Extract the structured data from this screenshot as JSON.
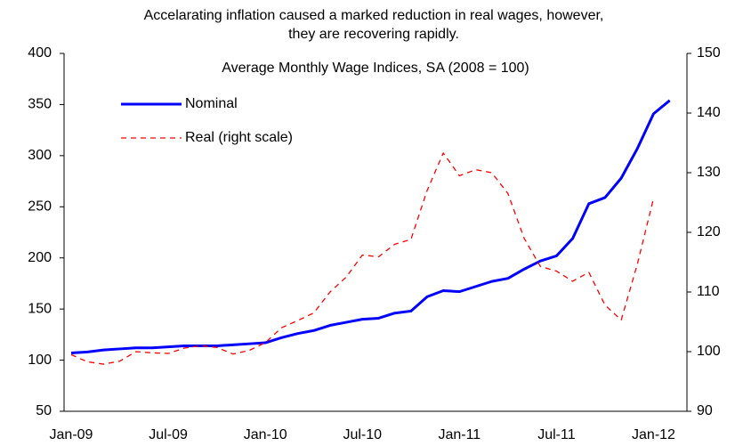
{
  "chart_data": {
    "type": "line",
    "title": [
      "Accelarating inflation caused a marked reduction in real wages, however,",
      "they are recovering rapidly."
    ],
    "subtitle": "Average Monthly Wage Indices, SA (2008 = 100)",
    "categories": [
      "Jan-09",
      null,
      null,
      null,
      null,
      null,
      "Jul-09",
      null,
      null,
      null,
      null,
      null,
      "Jan-10",
      null,
      null,
      null,
      null,
      null,
      "Jul-10",
      null,
      null,
      null,
      null,
      null,
      "Jan-11",
      null,
      null,
      null,
      null,
      null,
      "Jul-11",
      null,
      null,
      null,
      null,
      null,
      "Jan-12",
      null
    ],
    "series": [
      {
        "name": "Nominal",
        "color": "#0000ff",
        "style": "solid",
        "values": [
          107,
          108,
          110,
          111,
          112,
          112,
          113,
          114,
          114,
          114,
          115,
          116,
          117,
          122,
          126,
          129,
          134,
          137,
          140,
          141,
          146,
          148,
          162,
          168,
          167,
          172,
          177,
          180,
          189,
          197,
          202,
          219,
          253,
          259,
          278,
          307,
          341,
          354
        ]
      },
      {
        "name": "Real (right scale)",
        "color": "#ff0000",
        "style": "dashed",
        "axis": "y2",
        "values": [
          99.5,
          98.3,
          97.9,
          98.4,
          100,
          99.8,
          99.7,
          100.6,
          101,
          100.7,
          99.6,
          100.2,
          101.5,
          104,
          105.2,
          106.5,
          110,
          112.5,
          116.2,
          115.9,
          118,
          118.8,
          127,
          133.3,
          129.5,
          130.5,
          130,
          126.5,
          119,
          114.3,
          113.5,
          111.8,
          113.3,
          107.8,
          105.3,
          114.7,
          125.7,
          null
        ]
      }
    ],
    "ylim": [
      50,
      400
    ],
    "yticks": [
      50,
      100,
      150,
      200,
      250,
      300,
      350,
      400
    ],
    "y2lim": [
      90,
      150
    ],
    "y2ticks": [
      90,
      100,
      110,
      120,
      130,
      140,
      150
    ],
    "legend": "upper left",
    "grid": false
  }
}
